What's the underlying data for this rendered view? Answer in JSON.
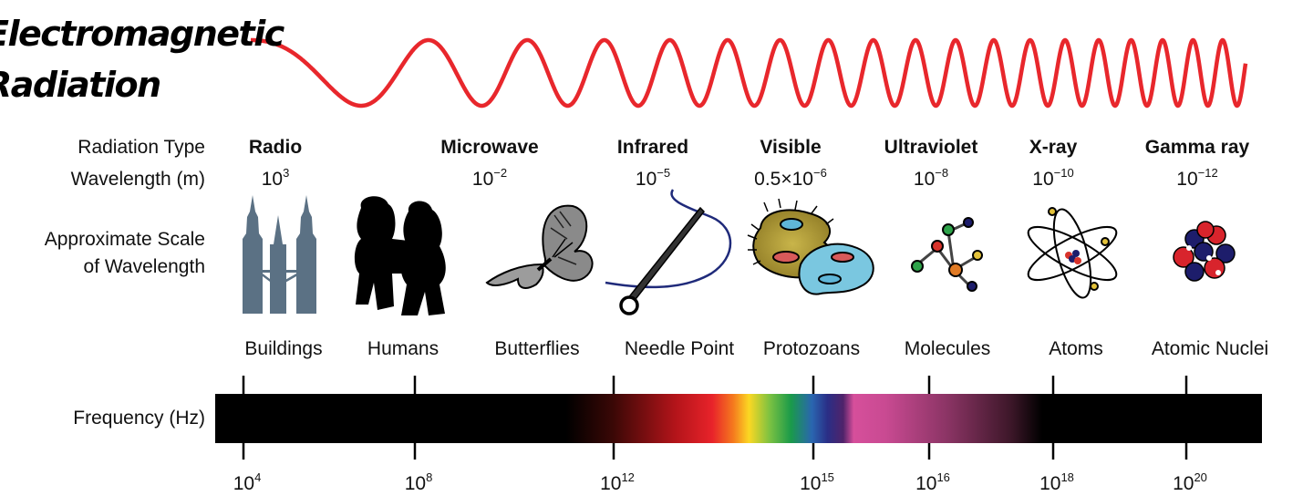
{
  "title": {
    "line1": "Electromagnetic",
    "line2": "Radiation"
  },
  "row_labels": {
    "radiation_type": "Radiation Type",
    "wavelength": "Wavelength (m)",
    "scale_line1": "Approximate Scale",
    "scale_line2": "of Wavelength",
    "frequency": "Frequency (Hz)"
  },
  "types": [
    {
      "name": "Radio",
      "wl_base": "10",
      "wl_exp": "3"
    },
    {
      "name": "Microwave",
      "wl_base": "10",
      "wl_exp": "−2"
    },
    {
      "name": "Infrared",
      "wl_base": "10",
      "wl_exp": "−5"
    },
    {
      "name": "Visible",
      "wl_base": "0.5×10",
      "wl_exp": "−6"
    },
    {
      "name": "Ultraviolet",
      "wl_base": "10",
      "wl_exp": "−8"
    },
    {
      "name": "X-ray",
      "wl_base": "10",
      "wl_exp": "−10"
    },
    {
      "name": "Gamma ray",
      "wl_base": "10",
      "wl_exp": "−12"
    }
  ],
  "scale_objects": [
    {
      "label": "Buildings",
      "icon": "twin-towers-icon"
    },
    {
      "label": "Humans",
      "icon": "humans-icon"
    },
    {
      "label": "Butterflies",
      "icon": "butterfly-icon"
    },
    {
      "label": "Needle Point",
      "icon": "needle-icon"
    },
    {
      "label": "Protozoans",
      "icon": "protozoan-icon"
    },
    {
      "label": "Molecules",
      "icon": "molecule-icon"
    },
    {
      "label": "Atoms",
      "icon": "atom-icon"
    },
    {
      "label": "Atomic Nuclei",
      "icon": "nucleus-icon"
    }
  ],
  "frequency_ticks": [
    {
      "base": "10",
      "exp": "4"
    },
    {
      "base": "10",
      "exp": "8"
    },
    {
      "base": "10",
      "exp": "12"
    },
    {
      "base": "10",
      "exp": "15"
    },
    {
      "base": "10",
      "exp": "16"
    },
    {
      "base": "10",
      "exp": "18"
    },
    {
      "base": "10",
      "exp": "20"
    }
  ],
  "colors": {
    "wave": "#e8272c",
    "bar": "#000000",
    "tower": "#5b7184"
  }
}
